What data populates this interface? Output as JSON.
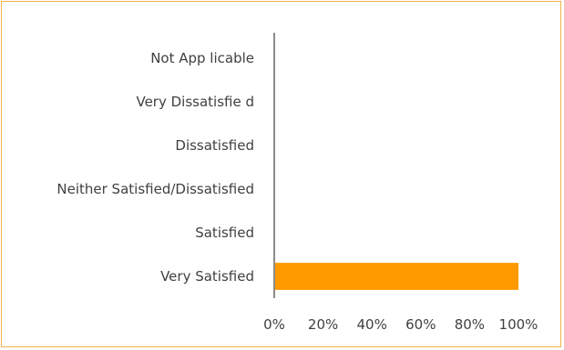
{
  "chart_data": {
    "type": "bar",
    "orientation": "horizontal",
    "categories": [
      "Not App licable",
      "Very Dissatisfie d",
      "Dissatisfied",
      "Neither Satisfied/Dissatisfied",
      "Satisfied",
      "Very Satisfied"
    ],
    "values": [
      0,
      0,
      0,
      0,
      0,
      100
    ],
    "xlim": [
      0,
      100
    ],
    "x_ticks": [
      "0%",
      "20%",
      "40%",
      "60%",
      "80%",
      "100%"
    ],
    "bar_color": "#ff9900",
    "frame_color": "#f4b24a",
    "grid": false,
    "title": "",
    "xlabel": "",
    "ylabel": ""
  }
}
